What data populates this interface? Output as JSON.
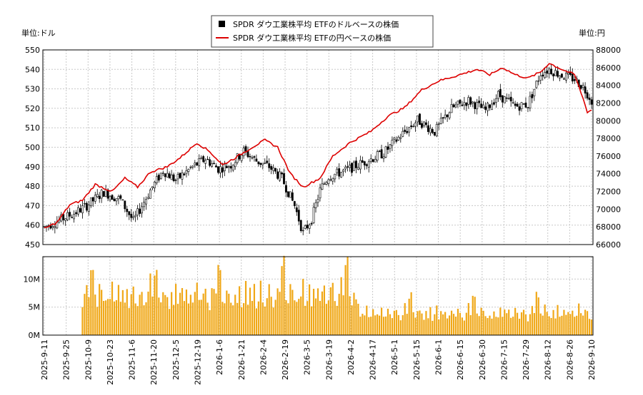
{
  "chart_data": {
    "type": "candlestick",
    "legend": {
      "placement": "top-center",
      "items": [
        {
          "label": "SPDR ダウ工業株平均 ETFのドルベースの株価",
          "color": "#000000",
          "marker": "square"
        },
        {
          "label": "SPDR ダウ工業株平均 ETFの円ベースの株価",
          "color": "#dd0000",
          "marker": "line"
        }
      ]
    },
    "left_unit": "単位:ドル",
    "right_unit": "単位:円",
    "y_left": {
      "min": 450,
      "max": 550,
      "ticks": [
        "450",
        "460",
        "470",
        "480",
        "490",
        "500",
        "510",
        "520",
        "530",
        "540",
        "550"
      ]
    },
    "y_right": {
      "min": 66000,
      "max": 88000,
      "ticks": [
        "66000",
        "68000",
        "70000",
        "72000",
        "74000",
        "76000",
        "78000",
        "80000",
        "82000",
        "84000",
        "86000",
        "88000"
      ]
    },
    "volume_axis": {
      "min": 0,
      "max": 14000000,
      "ticks": [
        {
          "v": 0,
          "label": "0M"
        },
        {
          "v": 5000000,
          "label": "5M"
        },
        {
          "v": 10000000,
          "label": "10M"
        }
      ]
    },
    "x_tick_labels": [
      "2025-9-11",
      "2025-9-25",
      "2025-10-9",
      "2025-10-23",
      "2025-11-6",
      "2025-11-20",
      "2025-12-5",
      "2025-12-19",
      "2026-1-6",
      "2026-1-21",
      "2026-2-4",
      "2026-2-19",
      "2026-3-5",
      "2026-3-19",
      "2026-4-2",
      "2026-4-17",
      "2026-5-1",
      "2026-5-15",
      "2026-6-1",
      "2026-6-15",
      "2026-6-30",
      "2026-7-15",
      "2026-7-29",
      "2026-8-12",
      "2026-8-26",
      "2026-9-10"
    ],
    "price_knots": [
      [
        0,
        459
      ],
      [
        6,
        462
      ],
      [
        14,
        466
      ],
      [
        20,
        470
      ],
      [
        28,
        477
      ],
      [
        36,
        473
      ],
      [
        42,
        462
      ],
      [
        50,
        478
      ],
      [
        56,
        488
      ],
      [
        62,
        483
      ],
      [
        70,
        490
      ],
      [
        76,
        494
      ],
      [
        82,
        489
      ],
      [
        88,
        491
      ],
      [
        94,
        498
      ],
      [
        100,
        493
      ],
      [
        106,
        490
      ],
      [
        112,
        484
      ],
      [
        118,
        470
      ],
      [
        122,
        456
      ],
      [
        126,
        463
      ],
      [
        130,
        478
      ],
      [
        134,
        485
      ],
      [
        142,
        488
      ],
      [
        150,
        492
      ],
      [
        160,
        497
      ],
      [
        168,
        506
      ],
      [
        176,
        514
      ],
      [
        184,
        508
      ],
      [
        192,
        520
      ],
      [
        200,
        524
      ],
      [
        208,
        519
      ],
      [
        214,
        527
      ],
      [
        222,
        521
      ],
      [
        228,
        522
      ],
      [
        234,
        538
      ],
      [
        238,
        540
      ],
      [
        244,
        537
      ],
      [
        250,
        535
      ],
      [
        254,
        531
      ],
      [
        257,
        526
      ],
      [
        258,
        524
      ]
    ],
    "yen_knots": [
      [
        0,
        67800
      ],
      [
        6,
        68500
      ],
      [
        12,
        70500
      ],
      [
        18,
        71000
      ],
      [
        24,
        72800
      ],
      [
        32,
        72000
      ],
      [
        38,
        73500
      ],
      [
        44,
        72500
      ],
      [
        50,
        74200
      ],
      [
        58,
        74800
      ],
      [
        64,
        75800
      ],
      [
        72,
        77500
      ],
      [
        78,
        76500
      ],
      [
        84,
        75000
      ],
      [
        90,
        75800
      ],
      [
        98,
        77000
      ],
      [
        104,
        77800
      ],
      [
        110,
        77000
      ],
      [
        116,
        74000
      ],
      [
        122,
        72500
      ],
      [
        130,
        73500
      ],
      [
        136,
        76000
      ],
      [
        144,
        77500
      ],
      [
        154,
        78800
      ],
      [
        162,
        80500
      ],
      [
        170,
        81500
      ],
      [
        178,
        83500
      ],
      [
        186,
        84500
      ],
      [
        196,
        85200
      ],
      [
        204,
        85800
      ],
      [
        210,
        85200
      ],
      [
        216,
        86000
      ],
      [
        222,
        85200
      ],
      [
        228,
        84800
      ],
      [
        234,
        85500
      ],
      [
        238,
        86500
      ],
      [
        244,
        85800
      ],
      [
        250,
        85200
      ],
      [
        254,
        82500
      ],
      [
        256,
        81000
      ],
      [
        258,
        81200
      ]
    ],
    "volume_pattern": [
      7.2,
      6.1,
      8.8,
      5.4,
      6.7,
      9.3,
      5.9,
      7.8,
      6.4,
      8.1,
      5.5,
      7.0,
      9.1,
      6.3,
      5.8,
      7.6,
      8.4,
      6.0,
      5.2,
      7.3,
      9.6,
      6.8,
      12.4,
      13.0,
      6.5,
      5.7,
      8.9,
      7.1,
      6.2,
      5.4
    ],
    "n_bars": 259,
    "volume_start": 18,
    "volume_break": [
      149,
      0.55
    ]
  }
}
